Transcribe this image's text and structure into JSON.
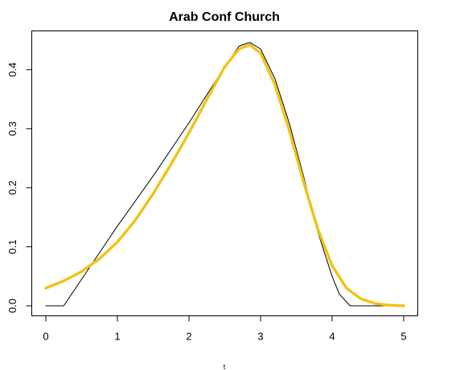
{
  "chart_data": {
    "type": "line",
    "title": "Arab Conf Church",
    "xlabel": "t",
    "ylabel": "",
    "xlim": [
      0,
      5
    ],
    "ylim": [
      0,
      0.45
    ],
    "x_ticks": [
      "0",
      "1",
      "2",
      "3",
      "4",
      "5"
    ],
    "y_ticks": [
      "0.0",
      "0.1",
      "0.2",
      "0.3",
      "0.4"
    ],
    "grid": false,
    "series": [
      {
        "color": "#000000",
        "x": [
          0,
          0.25,
          0.5,
          1.0,
          1.5,
          2.0,
          2.5,
          2.7,
          2.85,
          3.0,
          3.2,
          3.4,
          3.6,
          3.8,
          4.0,
          4.1,
          4.25,
          4.5,
          4.75
        ],
        "y": [
          0,
          0,
          0.045,
          0.135,
          0.22,
          0.31,
          0.405,
          0.44,
          0.446,
          0.435,
          0.385,
          0.31,
          0.22,
          0.125,
          0.05,
          0.02,
          0.0,
          0.0,
          0.0
        ]
      },
      {
        "color": "#F0C419",
        "x": [
          0,
          0.25,
          0.5,
          0.75,
          1.0,
          1.25,
          1.5,
          1.75,
          2.0,
          2.25,
          2.5,
          2.7,
          2.85,
          3.0,
          3.2,
          3.4,
          3.6,
          3.8,
          4.0,
          4.2,
          4.4,
          4.6,
          4.8,
          5.0
        ],
        "y": [
          0.03,
          0.042,
          0.058,
          0.08,
          0.108,
          0.145,
          0.19,
          0.24,
          0.293,
          0.35,
          0.405,
          0.435,
          0.442,
          0.428,
          0.375,
          0.298,
          0.21,
          0.13,
          0.068,
          0.03,
          0.012,
          0.004,
          0.001,
          0.0
        ]
      }
    ]
  }
}
